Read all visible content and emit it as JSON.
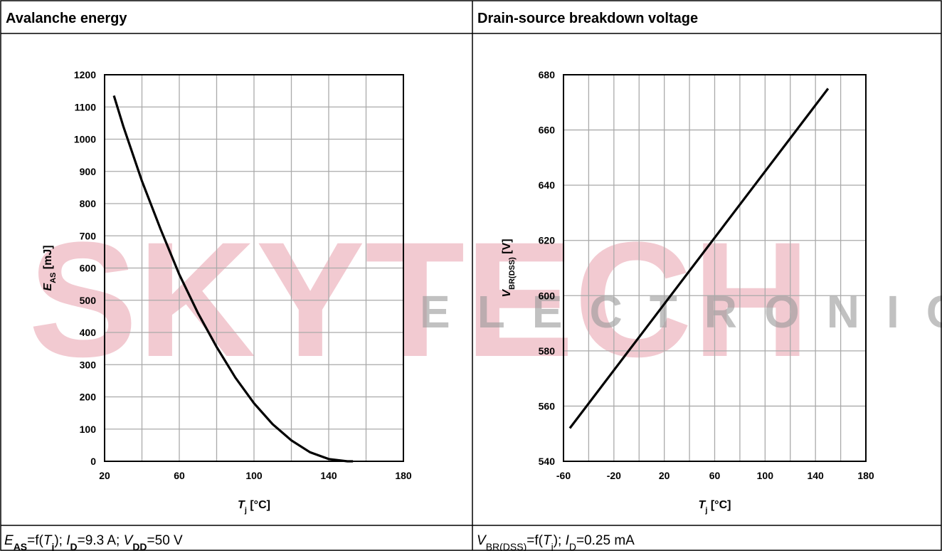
{
  "watermark": {
    "brand": "SKYTECH",
    "sub": "ELECTRONIC"
  },
  "chart_data": [
    {
      "type": "line",
      "title": "Avalanche energy",
      "caption": [
        "E",
        "AS",
        "=f(",
        "T",
        "j",
        "); ",
        "I",
        "D",
        "=9.3 A; ",
        "V",
        "DD",
        "=50 V"
      ],
      "xlabel": [
        "T",
        "j",
        " [°C]"
      ],
      "ylabel": [
        "E",
        "AS",
        " [mJ]"
      ],
      "x": [
        25,
        30,
        40,
        50,
        60,
        70,
        80,
        90,
        100,
        110,
        120,
        130,
        140,
        150,
        153
      ],
      "series": [
        {
          "color": "#000000",
          "values": [
            1135,
            1040,
            870,
            720,
            580,
            460,
            355,
            260,
            180,
            115,
            65,
            28,
            7,
            0,
            0
          ]
        }
      ],
      "xlim": [
        20,
        180
      ],
      "xticks": [
        20,
        60,
        100,
        140,
        180
      ],
      "xgrid": [
        40,
        80,
        120,
        160
      ],
      "ylim": [
        0,
        1200
      ],
      "yticks": [
        0,
        100,
        200,
        300,
        400,
        500,
        600,
        700,
        800,
        900,
        1000,
        1100,
        1200
      ],
      "grid": true
    },
    {
      "type": "line",
      "title": "Drain-source breakdown voltage",
      "caption": [
        "V",
        "BR(DSS)",
        "=f(",
        "T",
        "j",
        "); ",
        "I",
        "D",
        "=0.25 mA"
      ],
      "xlabel": [
        "T",
        "j",
        " [°C]"
      ],
      "ylabel": [
        "V",
        "BR(DSS)",
        " [V]"
      ],
      "x": [
        -55,
        150
      ],
      "series": [
        {
          "color": "#000000",
          "values": [
            552,
            675
          ]
        }
      ],
      "xlim": [
        -60,
        180
      ],
      "xticks": [
        -60,
        -20,
        20,
        60,
        100,
        140,
        180
      ],
      "xgrid": [
        -40,
        0,
        40,
        80,
        120,
        160
      ],
      "ylim": [
        540,
        680
      ],
      "yticks": [
        540,
        560,
        580,
        600,
        620,
        640,
        660,
        680
      ],
      "grid": true
    }
  ]
}
